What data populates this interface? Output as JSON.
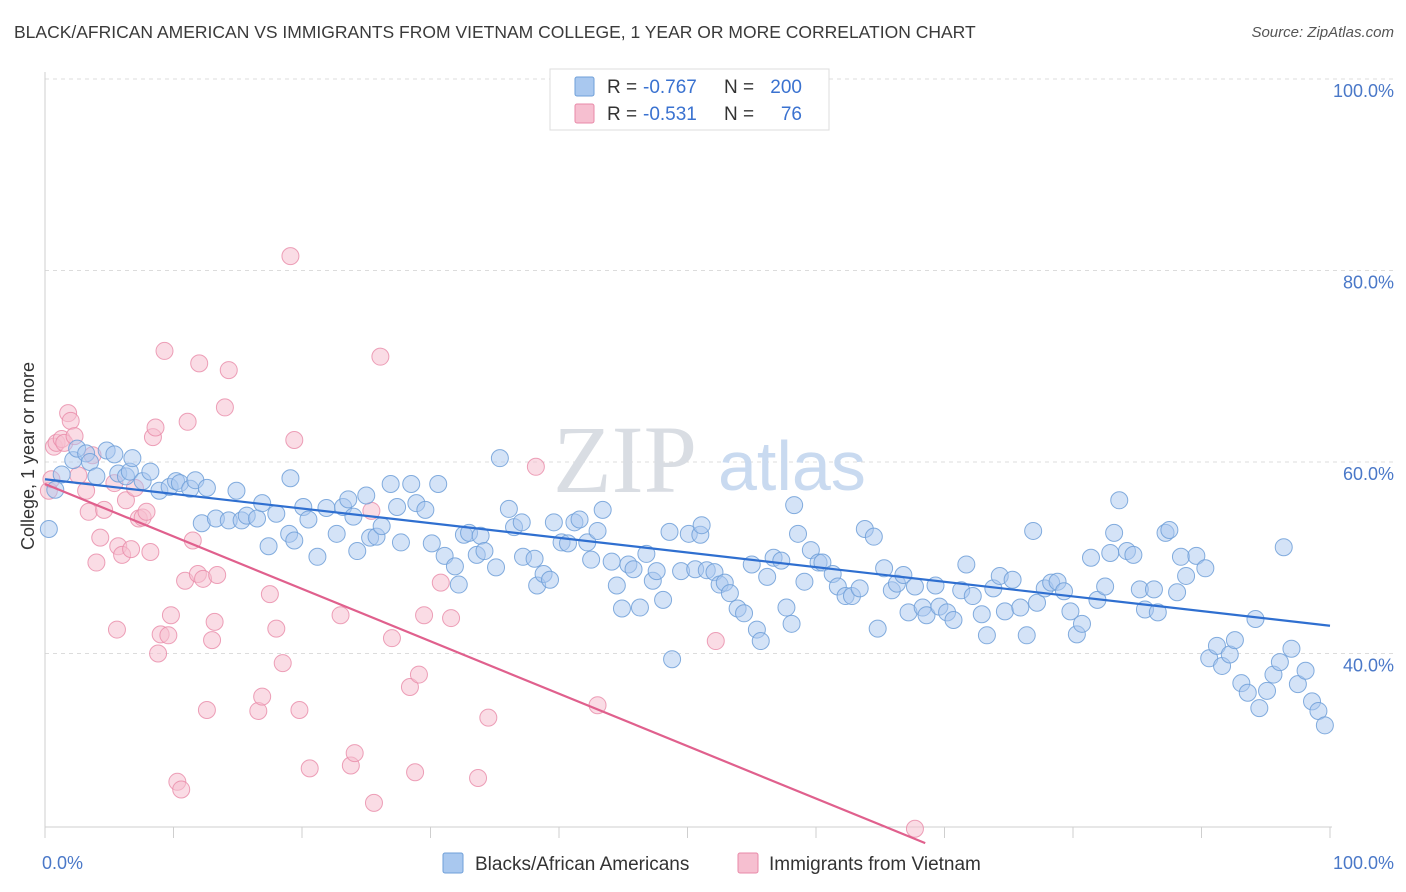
{
  "header": {
    "title": "BLACK/AFRICAN AMERICAN VS IMMIGRANTS FROM VIETNAM COLLEGE, 1 YEAR OR MORE CORRELATION CHART",
    "source": "Source: ZipAtlas.com"
  },
  "watermark": {
    "zip": "ZIP",
    "atlas": "atlas"
  },
  "legend_top": {
    "blue": {
      "r_label": "R =",
      "r_value": "-0.767",
      "n_label": "N =",
      "n_value": "200"
    },
    "pink": {
      "r_label": "R =",
      "r_value": "-0.531",
      "n_label": "N =",
      "n_value": "76"
    }
  },
  "legend_bottom": {
    "blue_label": "Blacks/African Americans",
    "pink_label": "Immigrants from Vietnam"
  },
  "colors": {
    "blue_fill": "#a9c8ef",
    "blue_stroke": "#6f9fd8",
    "blue_line": "#2f6fd0",
    "pink_fill": "#f6bfd0",
    "pink_stroke": "#e88aa8",
    "pink_line": "#e0608d",
    "grid": "#dcdcdc",
    "tick_text": "#4a78c8"
  },
  "chart_data": {
    "type": "scatter",
    "title": "BLACK/AFRICAN AMERICAN VS IMMIGRANTS FROM VIETNAM COLLEGE, 1 YEAR OR MORE CORRELATION CHART",
    "xlabel": "",
    "ylabel": "College, 1 year or more",
    "xlim": [
      0,
      100
    ],
    "ylim": [
      20,
      104
    ],
    "x_tick_labels": [
      "0.0%",
      "100.0%"
    ],
    "y_ticks": [
      40,
      60,
      80,
      100
    ],
    "y_tick_labels": [
      "40.0%",
      "60.0%",
      "80.0%",
      "100.0%"
    ],
    "grid": true,
    "legend_placement": "top-center",
    "series": [
      {
        "name": "Blacks/African Americans",
        "r": -0.767,
        "n": 200,
        "trend": {
          "x0": 0,
          "y0": 58.2,
          "x1": 100,
          "y1": 42.9
        },
        "points": [
          [
            0.3,
            53.0
          ],
          [
            0.8,
            57.1
          ],
          [
            1.3,
            58.7
          ],
          [
            2.2,
            60.2
          ],
          [
            2.5,
            61.4
          ],
          [
            3.2,
            60.9
          ],
          [
            3.5,
            60.0
          ],
          [
            4.0,
            58.5
          ],
          [
            4.8,
            61.2
          ],
          [
            5.4,
            60.8
          ],
          [
            5.7,
            58.8
          ],
          [
            6.3,
            58.5
          ],
          [
            6.6,
            59.0
          ],
          [
            6.8,
            60.4
          ],
          [
            7.6,
            58.0
          ],
          [
            8.2,
            59.0
          ],
          [
            8.9,
            57.0
          ],
          [
            9.7,
            57.4
          ],
          [
            10.2,
            58.0
          ],
          [
            10.5,
            57.8
          ],
          [
            11.3,
            57.2
          ],
          [
            11.7,
            58.1
          ],
          [
            12.6,
            57.3
          ],
          [
            12.2,
            53.6
          ],
          [
            13.3,
            54.1
          ],
          [
            14.3,
            53.9
          ],
          [
            14.9,
            57.0
          ],
          [
            15.3,
            53.9
          ],
          [
            15.7,
            54.4
          ],
          [
            16.5,
            54.1
          ],
          [
            16.9,
            55.7
          ],
          [
            17.4,
            51.2
          ],
          [
            18.0,
            54.6
          ],
          [
            19.0,
            52.5
          ],
          [
            19.1,
            58.3
          ],
          [
            19.4,
            51.8
          ],
          [
            20.1,
            55.3
          ],
          [
            20.5,
            54.0
          ],
          [
            21.2,
            50.1
          ],
          [
            21.9,
            55.2
          ],
          [
            22.7,
            52.5
          ],
          [
            23.2,
            55.3
          ],
          [
            23.6,
            56.1
          ],
          [
            24.0,
            54.3
          ],
          [
            24.3,
            50.7
          ],
          [
            25.0,
            56.5
          ],
          [
            25.3,
            52.1
          ],
          [
            25.8,
            52.2
          ],
          [
            26.2,
            53.3
          ],
          [
            26.9,
            57.7
          ],
          [
            27.4,
            55.3
          ],
          [
            27.7,
            51.6
          ],
          [
            28.5,
            57.7
          ],
          [
            28.9,
            55.7
          ],
          [
            29.6,
            55.0
          ],
          [
            30.1,
            51.5
          ],
          [
            30.6,
            57.7
          ],
          [
            31.1,
            50.2
          ],
          [
            31.9,
            49.1
          ],
          [
            32.2,
            47.2
          ],
          [
            32.6,
            52.4
          ],
          [
            33.0,
            52.6
          ],
          [
            33.6,
            50.3
          ],
          [
            33.9,
            52.3
          ],
          [
            34.2,
            50.7
          ],
          [
            35.1,
            49.0
          ],
          [
            35.4,
            60.4
          ],
          [
            36.1,
            55.1
          ],
          [
            36.5,
            53.2
          ],
          [
            37.1,
            53.7
          ],
          [
            37.2,
            50.1
          ],
          [
            38.1,
            49.9
          ],
          [
            38.3,
            47.1
          ],
          [
            38.8,
            48.3
          ],
          [
            39.3,
            47.7
          ],
          [
            39.6,
            53.7
          ],
          [
            40.2,
            51.6
          ],
          [
            40.7,
            51.5
          ],
          [
            41.2,
            53.7
          ],
          [
            41.6,
            54.0
          ],
          [
            42.2,
            51.6
          ],
          [
            42.5,
            49.8
          ],
          [
            43.0,
            52.8
          ],
          [
            43.4,
            55.0
          ],
          [
            44.1,
            49.6
          ],
          [
            44.5,
            47.1
          ],
          [
            44.9,
            44.7
          ],
          [
            45.4,
            49.3
          ],
          [
            45.8,
            48.8
          ],
          [
            46.3,
            44.8
          ],
          [
            46.8,
            50.4
          ],
          [
            47.3,
            47.6
          ],
          [
            47.6,
            48.6
          ],
          [
            48.1,
            45.6
          ],
          [
            48.6,
            52.7
          ],
          [
            48.8,
            39.4
          ],
          [
            49.5,
            48.6
          ],
          [
            50.1,
            52.5
          ],
          [
            50.6,
            48.8
          ],
          [
            51.0,
            52.4
          ],
          [
            51.5,
            48.7
          ],
          [
            52.1,
            48.5
          ],
          [
            52.5,
            47.2
          ],
          [
            52.9,
            47.4
          ],
          [
            53.3,
            46.3
          ],
          [
            53.9,
            44.7
          ],
          [
            54.4,
            44.2
          ],
          [
            55.0,
            49.3
          ],
          [
            55.4,
            42.5
          ],
          [
            55.7,
            41.3
          ],
          [
            56.2,
            48.0
          ],
          [
            56.7,
            50.0
          ],
          [
            57.3,
            49.7
          ],
          [
            57.7,
            44.8
          ],
          [
            58.1,
            43.1
          ],
          [
            58.6,
            52.5
          ],
          [
            59.1,
            47.5
          ],
          [
            59.6,
            50.8
          ],
          [
            60.2,
            49.5
          ],
          [
            60.5,
            49.5
          ],
          [
            61.3,
            48.3
          ],
          [
            61.7,
            47.0
          ],
          [
            62.3,
            46.0
          ],
          [
            62.8,
            46.0
          ],
          [
            63.4,
            46.8
          ],
          [
            63.8,
            53.0
          ],
          [
            64.5,
            52.2
          ],
          [
            64.8,
            42.6
          ],
          [
            65.3,
            48.9
          ],
          [
            65.9,
            46.6
          ],
          [
            66.3,
            47.3
          ],
          [
            66.8,
            48.2
          ],
          [
            67.2,
            44.3
          ],
          [
            67.7,
            47.0
          ],
          [
            68.3,
            44.8
          ],
          [
            68.6,
            44.0
          ],
          [
            69.3,
            47.1
          ],
          [
            69.6,
            44.9
          ],
          [
            70.2,
            44.3
          ],
          [
            70.7,
            43.5
          ],
          [
            71.3,
            46.6
          ],
          [
            71.7,
            49.3
          ],
          [
            72.2,
            46.0
          ],
          [
            72.9,
            44.1
          ],
          [
            73.3,
            41.9
          ],
          [
            73.8,
            46.8
          ],
          [
            74.3,
            48.1
          ],
          [
            74.7,
            44.4
          ],
          [
            75.3,
            47.7
          ],
          [
            75.9,
            44.8
          ],
          [
            76.4,
            41.9
          ],
          [
            76.9,
            52.8
          ],
          [
            77.2,
            45.3
          ],
          [
            77.8,
            46.8
          ],
          [
            78.3,
            47.4
          ],
          [
            78.8,
            47.5
          ],
          [
            79.3,
            46.5
          ],
          [
            79.8,
            44.4
          ],
          [
            80.3,
            42.0
          ],
          [
            80.7,
            43.1
          ],
          [
            81.4,
            50.0
          ],
          [
            81.9,
            45.6
          ],
          [
            82.5,
            47.0
          ],
          [
            82.9,
            50.5
          ],
          [
            83.2,
            52.6
          ],
          [
            83.6,
            56.0
          ],
          [
            84.2,
            50.7
          ],
          [
            84.7,
            50.3
          ],
          [
            85.2,
            46.7
          ],
          [
            85.6,
            44.6
          ],
          [
            86.3,
            46.7
          ],
          [
            86.6,
            44.3
          ],
          [
            87.2,
            52.6
          ],
          [
            87.5,
            52.9
          ],
          [
            88.1,
            46.4
          ],
          [
            88.4,
            50.1
          ],
          [
            88.8,
            48.1
          ],
          [
            89.6,
            50.2
          ],
          [
            90.3,
            48.9
          ],
          [
            90.6,
            39.5
          ],
          [
            91.2,
            40.8
          ],
          [
            91.6,
            38.7
          ],
          [
            92.2,
            39.9
          ],
          [
            92.6,
            41.4
          ],
          [
            93.1,
            36.9
          ],
          [
            93.6,
            35.9
          ],
          [
            94.2,
            43.6
          ],
          [
            94.5,
            34.3
          ],
          [
            95.1,
            36.1
          ],
          [
            95.6,
            37.8
          ],
          [
            96.1,
            39.1
          ],
          [
            96.4,
            51.1
          ],
          [
            97.0,
            40.5
          ],
          [
            97.5,
            36.8
          ],
          [
            98.1,
            38.2
          ],
          [
            98.6,
            35.0
          ],
          [
            99.1,
            34.0
          ],
          [
            99.6,
            32.5
          ],
          [
            51.1,
            53.4
          ],
          [
            58.3,
            55.5
          ]
        ]
      },
      {
        "name": "Immigrants from Vietnam",
        "r": -0.531,
        "n": 76,
        "trend": {
          "x0": 0,
          "y0": 57.7,
          "x1": 68.5,
          "y1": 20.2
        },
        "points": [
          [
            0.3,
            57.0
          ],
          [
            0.5,
            58.2
          ],
          [
            0.7,
            61.6
          ],
          [
            0.9,
            62.0
          ],
          [
            1.3,
            62.4
          ],
          [
            1.5,
            62.0
          ],
          [
            1.8,
            65.1
          ],
          [
            2.0,
            64.3
          ],
          [
            2.3,
            62.7
          ],
          [
            2.6,
            58.6
          ],
          [
            3.2,
            57.0
          ],
          [
            3.4,
            54.8
          ],
          [
            3.7,
            60.7
          ],
          [
            4.0,
            49.5
          ],
          [
            4.3,
            52.1
          ],
          [
            4.6,
            55.0
          ],
          [
            5.4,
            57.8
          ],
          [
            5.6,
            42.5
          ],
          [
            5.7,
            51.2
          ],
          [
            6.0,
            50.3
          ],
          [
            6.3,
            56.0
          ],
          [
            6.7,
            50.9
          ],
          [
            7.0,
            57.3
          ],
          [
            7.3,
            54.1
          ],
          [
            7.6,
            54.2
          ],
          [
            7.9,
            54.8
          ],
          [
            8.2,
            50.6
          ],
          [
            8.4,
            62.6
          ],
          [
            8.6,
            63.6
          ],
          [
            8.8,
            40.0
          ],
          [
            9.0,
            42.0
          ],
          [
            9.3,
            71.6
          ],
          [
            9.6,
            41.9
          ],
          [
            9.8,
            44.0
          ],
          [
            10.3,
            26.6
          ],
          [
            10.6,
            25.8
          ],
          [
            10.9,
            47.6
          ],
          [
            11.1,
            64.2
          ],
          [
            11.5,
            51.8
          ],
          [
            11.9,
            48.3
          ],
          [
            12.0,
            70.3
          ],
          [
            12.3,
            47.8
          ],
          [
            12.6,
            34.1
          ],
          [
            13.0,
            41.4
          ],
          [
            13.2,
            43.3
          ],
          [
            13.4,
            48.2
          ],
          [
            14.0,
            65.7
          ],
          [
            14.3,
            69.6
          ],
          [
            16.6,
            34.0
          ],
          [
            16.9,
            35.5
          ],
          [
            17.5,
            46.2
          ],
          [
            18.0,
            42.6
          ],
          [
            18.5,
            39.0
          ],
          [
            19.1,
            81.5
          ],
          [
            19.4,
            62.3
          ],
          [
            19.8,
            34.1
          ],
          [
            20.6,
            28.0
          ],
          [
            23.0,
            44.0
          ],
          [
            23.8,
            28.3
          ],
          [
            24.1,
            29.6
          ],
          [
            25.4,
            54.9
          ],
          [
            25.6,
            24.4
          ],
          [
            26.1,
            71.0
          ],
          [
            27.0,
            41.6
          ],
          [
            28.4,
            36.5
          ],
          [
            28.8,
            27.6
          ],
          [
            29.1,
            37.8
          ],
          [
            30.8,
            47.4
          ],
          [
            31.6,
            43.7
          ],
          [
            33.7,
            27.0
          ],
          [
            34.5,
            33.3
          ],
          [
            38.2,
            59.5
          ],
          [
            43.0,
            34.6
          ],
          [
            52.2,
            41.3
          ],
          [
            67.7,
            21.7
          ],
          [
            29.5,
            44.0
          ]
        ]
      }
    ]
  }
}
